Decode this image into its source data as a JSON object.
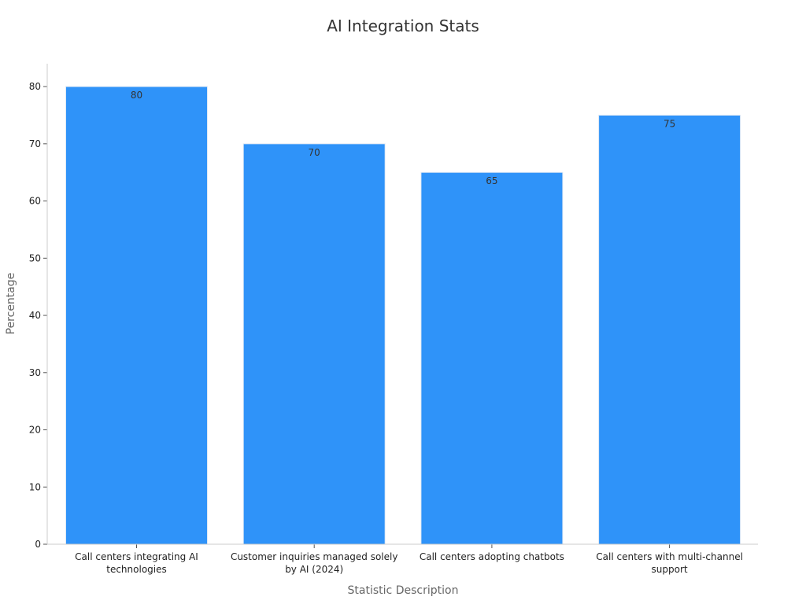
{
  "chart_data": {
    "type": "bar",
    "title": "AI Integration Stats",
    "xlabel": "Statistic Description",
    "ylabel": "Percentage",
    "categories": [
      [
        "Call centers integrating AI",
        "technologies"
      ],
      [
        "Customer inquiries managed solely",
        "by AI (2024)"
      ],
      [
        "Call centers adopting chatbots"
      ],
      [
        "Call centers with multi-channel",
        "support"
      ]
    ],
    "values": [
      80,
      70,
      65,
      75
    ],
    "ylim": [
      0,
      84
    ],
    "yticks": [
      0,
      10,
      20,
      30,
      40,
      50,
      60,
      70,
      80
    ],
    "grid": false,
    "legend": "none",
    "bar_color": "#2f93f9"
  }
}
